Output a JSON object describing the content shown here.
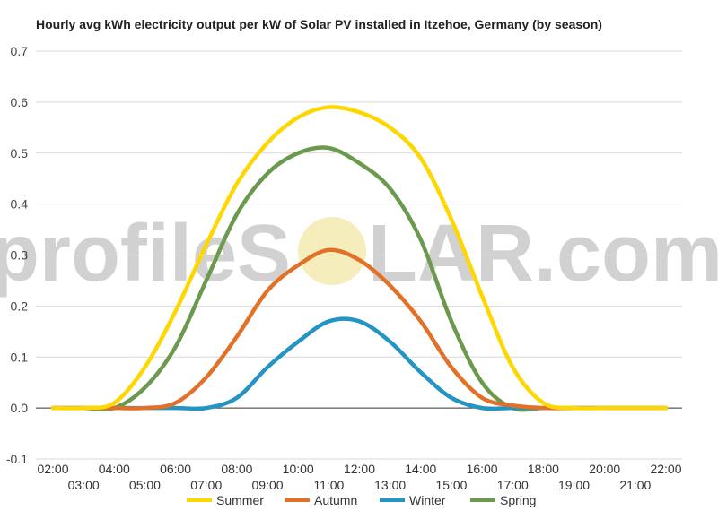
{
  "title": "Hourly avg kWh electricity output per kW of Solar PV installed in Itzehoe, Germany (by season)",
  "watermark": {
    "text_left": "profileS",
    "text_right": "LAR.com",
    "sun_color": "#f5eab0"
  },
  "chart_data": {
    "type": "line",
    "title": "Hourly avg kWh electricity output per kW of Solar PV installed in Itzehoe, Germany (by season)",
    "xlabel": "",
    "ylabel": "",
    "ylim": [
      -0.1,
      0.7
    ],
    "yticks": [
      -0.1,
      0.0,
      0.1,
      0.2,
      0.3,
      0.4,
      0.5,
      0.6,
      0.7
    ],
    "ytick_labels": [
      "-0.1",
      "0.0",
      "0.1",
      "0.2",
      "0.3",
      "0.4",
      "0.5",
      "0.6",
      "0.7"
    ],
    "grid": true,
    "legend": "bottom",
    "x": [
      "02:00",
      "03:00",
      "04:00",
      "05:00",
      "06:00",
      "07:00",
      "08:00",
      "09:00",
      "10:00",
      "11:00",
      "12:00",
      "13:00",
      "14:00",
      "15:00",
      "16:00",
      "17:00",
      "18:00",
      "19:00",
      "20:00",
      "21:00",
      "22:00"
    ],
    "series": [
      {
        "name": "Summer",
        "color": "#ffd700",
        "values": [
          0,
          0,
          0.01,
          0.08,
          0.19,
          0.32,
          0.44,
          0.52,
          0.57,
          0.59,
          0.58,
          0.55,
          0.49,
          0.37,
          0.22,
          0.08,
          0.01,
          0,
          0,
          0,
          0
        ]
      },
      {
        "name": "Autumn",
        "color": "#e37027",
        "values": [
          0,
          0,
          0,
          0,
          0.01,
          0.06,
          0.14,
          0.23,
          0.28,
          0.31,
          0.29,
          0.24,
          0.17,
          0.08,
          0.02,
          0.005,
          0,
          0,
          0,
          0,
          0
        ]
      },
      {
        "name": "Winter",
        "color": "#2394c4",
        "values": [
          0,
          0,
          0,
          0,
          0,
          0,
          0.02,
          0.08,
          0.13,
          0.17,
          0.17,
          0.13,
          0.07,
          0.02,
          0,
          0,
          0,
          0,
          0,
          0,
          0
        ]
      },
      {
        "name": "Spring",
        "color": "#6b9a4f",
        "values": [
          0,
          0,
          0,
          0.04,
          0.12,
          0.25,
          0.38,
          0.46,
          0.5,
          0.51,
          0.48,
          0.43,
          0.33,
          0.17,
          0.05,
          0,
          0,
          0,
          0,
          0,
          0
        ]
      }
    ]
  }
}
